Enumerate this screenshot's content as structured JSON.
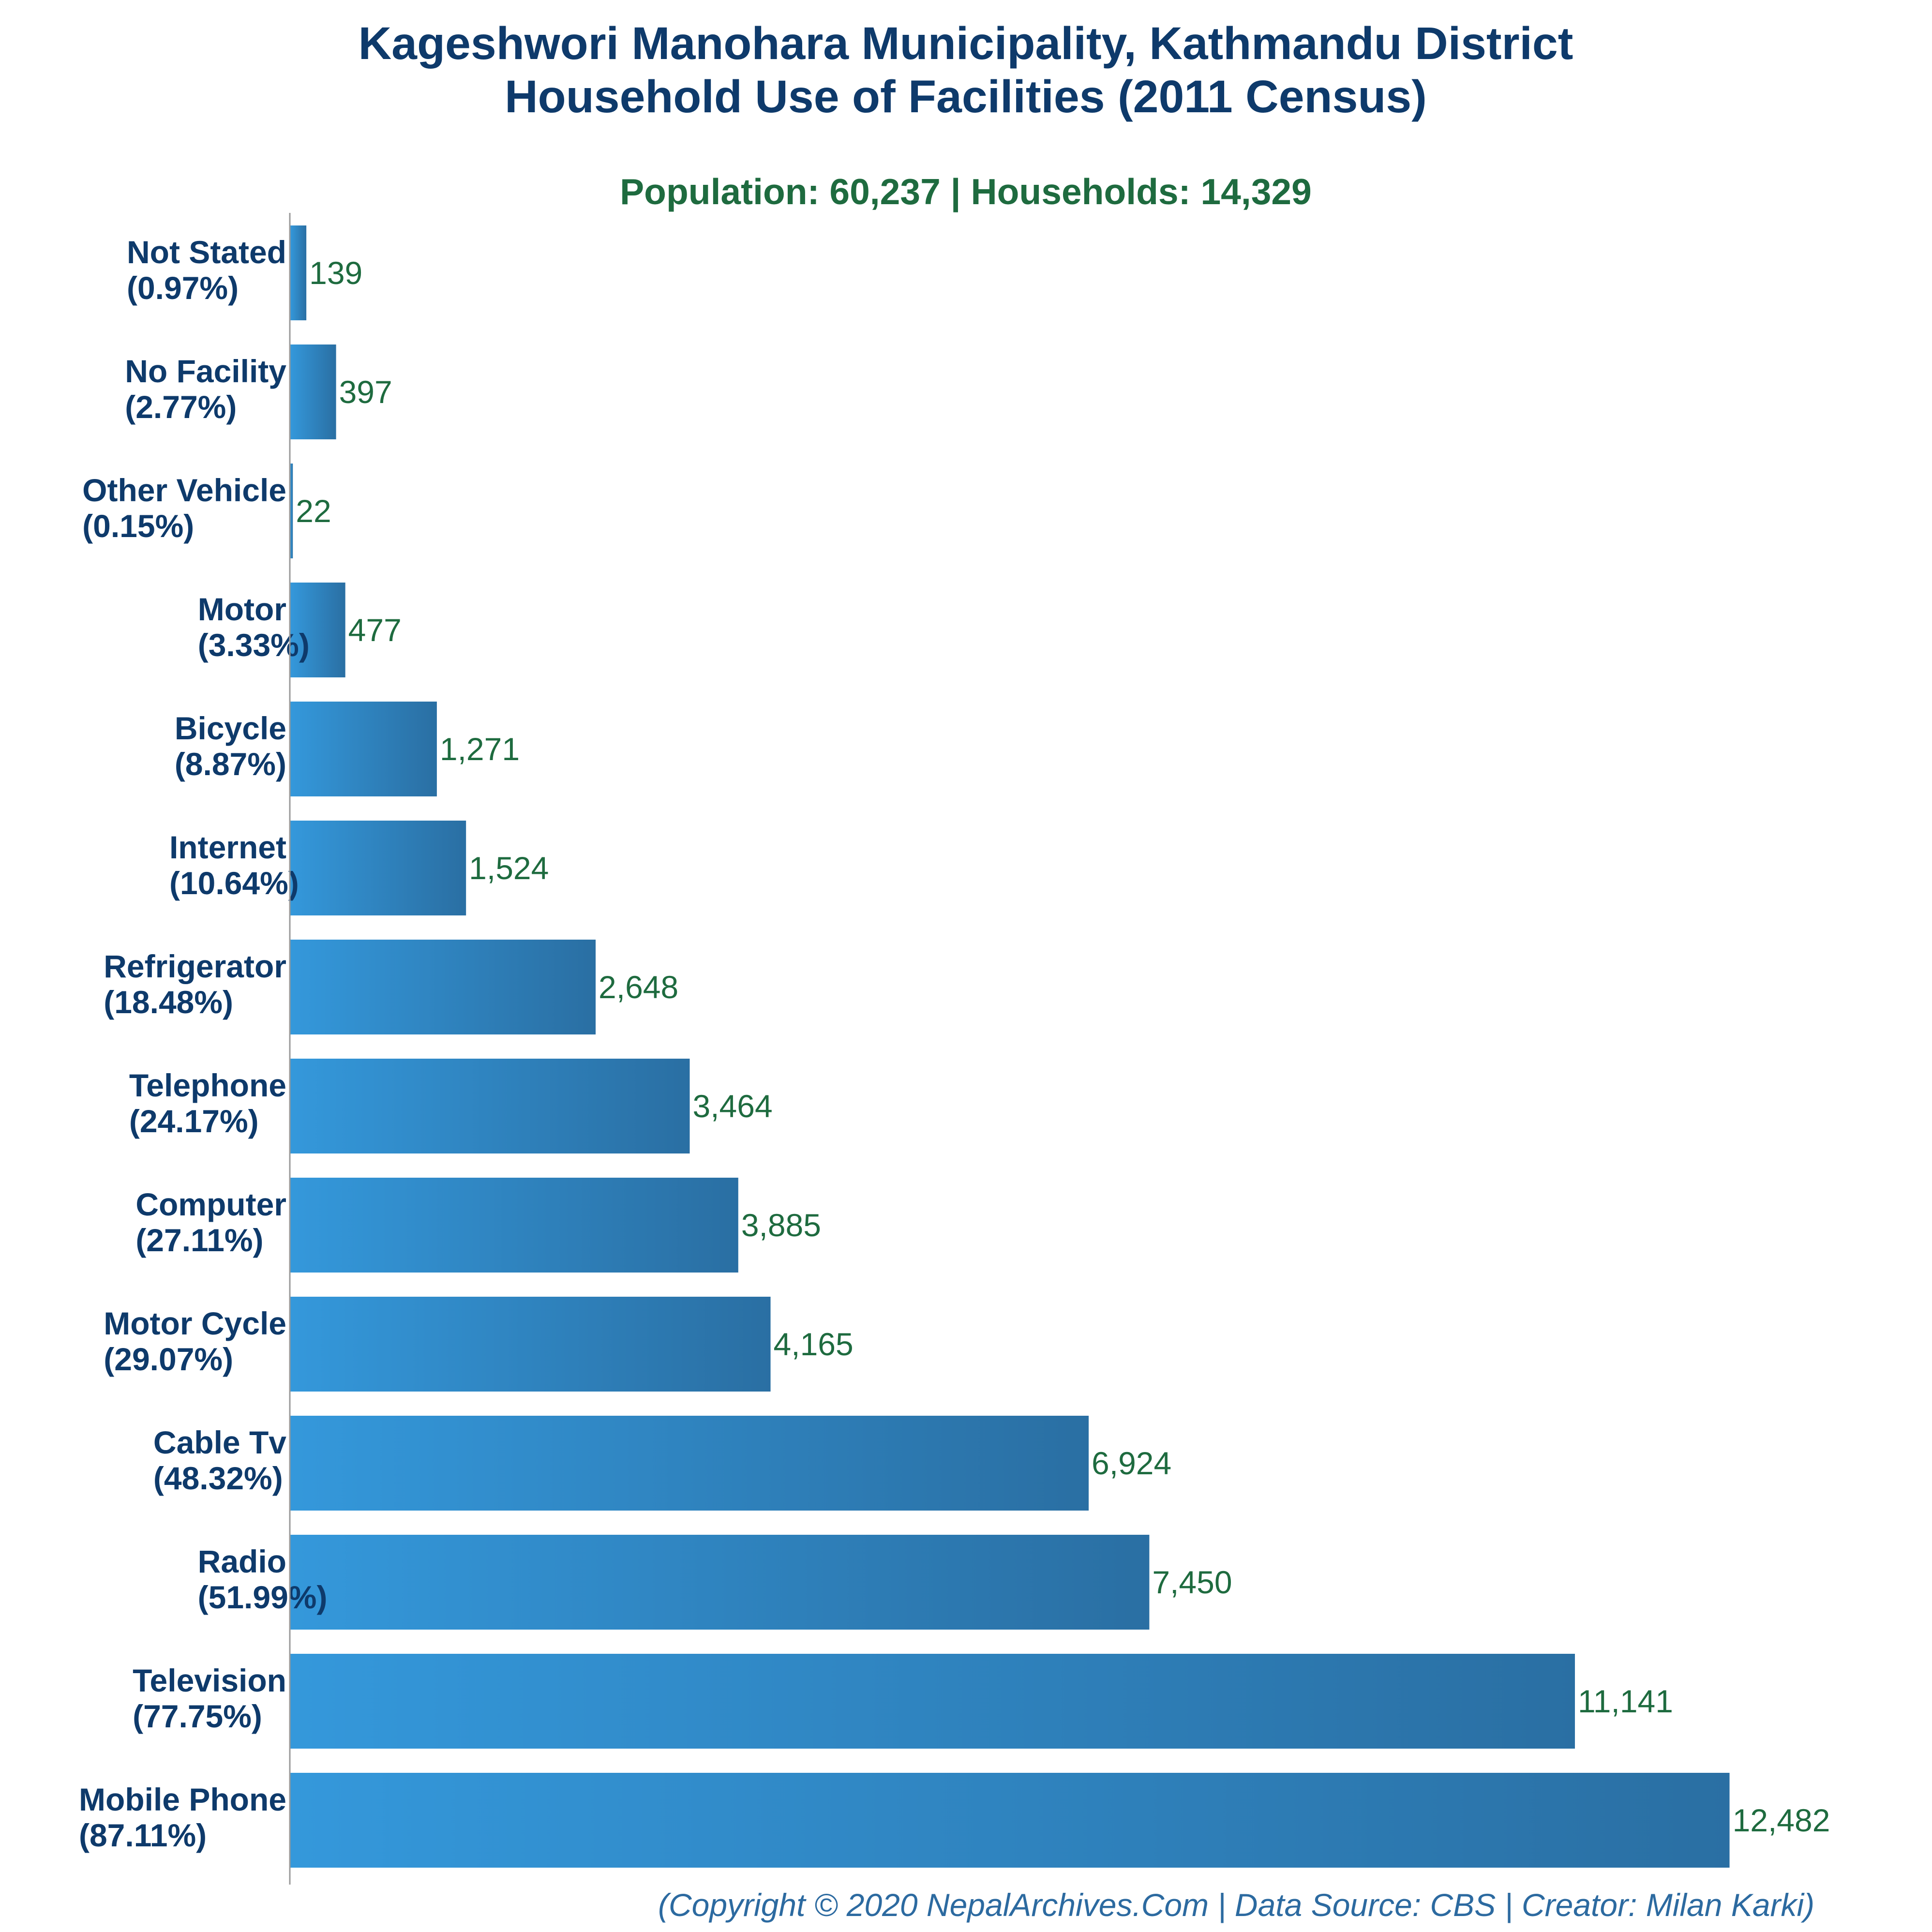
{
  "chart_data": {
    "type": "bar",
    "orientation": "horizontal",
    "title": "Kageshwori Manohara Municipality, Kathmandu District",
    "title_line2": "Household Use of Facilities (2011 Census)",
    "subtitle": "Population: 60,237 | Households: 14,329",
    "categories": [
      {
        "name": "Not Stated",
        "pct": "(0.97%)",
        "value": 139,
        "label": "139"
      },
      {
        "name": "No Facility",
        "pct": "(2.77%)",
        "value": 397,
        "label": "397"
      },
      {
        "name": "Other Vehicle",
        "pct": "(0.15%)",
        "value": 22,
        "label": "22"
      },
      {
        "name": "Motor",
        "pct": "(3.33%)",
        "value": 477,
        "label": "477"
      },
      {
        "name": "Bicycle",
        "pct": "(8.87%)",
        "value": 1271,
        "label": "1,271"
      },
      {
        "name": "Internet",
        "pct": "(10.64%)",
        "value": 1524,
        "label": "1,524"
      },
      {
        "name": "Refrigerator",
        "pct": "(18.48%)",
        "value": 2648,
        "label": "2,648"
      },
      {
        "name": "Telephone",
        "pct": "(24.17%)",
        "value": 3464,
        "label": "3,464"
      },
      {
        "name": "Computer",
        "pct": "(27.11%)",
        "value": 3885,
        "label": "3,885"
      },
      {
        "name": "Motor Cycle",
        "pct": "(29.07%)",
        "value": 4165,
        "label": "4,165"
      },
      {
        "name": "Cable Tv",
        "pct": "(48.32%)",
        "value": 6924,
        "label": "6,924"
      },
      {
        "name": "Radio",
        "pct": "(51.99%)",
        "value": 7450,
        "label": "7,450"
      },
      {
        "name": "Television",
        "pct": "(77.75%)",
        "value": 11141,
        "label": "11,141"
      },
      {
        "name": "Mobile Phone",
        "pct": "(87.11%)",
        "value": 12482,
        "label": "12,482"
      }
    ],
    "xlim": [
      0,
      13500
    ],
    "grid": false,
    "legend": "none",
    "bar_color_start": "#3498db",
    "bar_color_end": "#2a6fa3",
    "credit": "(Copyright © 2020 NepalArchives.Com | Data Source: CBS | Creator: Milan Karki)"
  }
}
